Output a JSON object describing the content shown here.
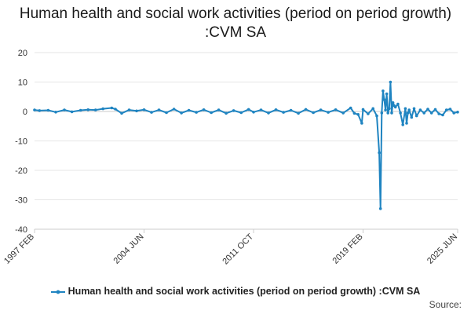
{
  "chart_data": {
    "type": "line",
    "title": "Human health and social work activities (period on period growth) :CVM SA",
    "xlabel": "",
    "ylabel": "",
    "ylim": [
      -40,
      20
    ],
    "yticks": [
      20,
      10,
      0,
      -10,
      -20,
      -30,
      -40
    ],
    "xticks": [
      "1997 FEB",
      "2004 JUN",
      "2011 OCT",
      "2019 FEB",
      "2025 JUN"
    ],
    "grid": true,
    "legend_position": "bottom",
    "x_start": "1997 FEB",
    "x_end": "2025 JUN",
    "series": [
      {
        "name": "Human health and social work activities (period on period growth) :CVM SA",
        "color": "#1f84c1",
        "x": [
          "1997 FEB",
          "1997 JUN",
          "1998 JAN",
          "1998 JUL",
          "1999 FEB",
          "1999 AUG",
          "2000 MAR",
          "2000 SEP",
          "2001 MAR",
          "2001 SEP",
          "2002 APR",
          "2002 JUL",
          "2002 DEC",
          "2003 JUN",
          "2003 DEC",
          "2004 JUN",
          "2004 DEC",
          "2005 JUN",
          "2005 DEC",
          "2006 JUN",
          "2006 DEC",
          "2007 JUN",
          "2007 DEC",
          "2008 JUN",
          "2008 DEC",
          "2009 JUN",
          "2009 DEC",
          "2010 JUN",
          "2010 DEC",
          "2011 JUN",
          "2011 OCT",
          "2012 APR",
          "2012 OCT",
          "2013 APR",
          "2013 OCT",
          "2014 APR",
          "2014 OCT",
          "2015 APR",
          "2015 OCT",
          "2016 APR",
          "2016 OCT",
          "2017 APR",
          "2017 OCT",
          "2018 APR",
          "2018 JUL",
          "2018 OCT",
          "2019 JAN",
          "2019 FEB",
          "2019 JUN",
          "2019 OCT",
          "2020 JAN",
          "2020 MAR",
          "2020 APR",
          "2020 MAY",
          "2020 JUN",
          "2020 JUL",
          "2020 AUG",
          "2020 SEP",
          "2020 OCT",
          "2020 NOV",
          "2020 DEC",
          "2021 JAN",
          "2021 FEB",
          "2021 MAR",
          "2021 APR",
          "2021 JUN",
          "2021 AUG",
          "2021 OCT",
          "2021 DEC",
          "2022 JAN",
          "2022 FEB",
          "2022 MAR",
          "2022 MAY",
          "2022 JUL",
          "2022 SEP",
          "2022 DEC",
          "2023 MAR",
          "2023 JUN",
          "2023 SEP",
          "2023 DEC",
          "2024 MAR",
          "2024 JUN",
          "2024 SEP",
          "2024 DEC",
          "2025 MAR",
          "2025 JUN"
        ],
        "values": [
          0.5,
          0.3,
          0.4,
          -0.2,
          0.5,
          -0.1,
          0.4,
          0.6,
          0.5,
          0.9,
          1.2,
          0.8,
          -0.6,
          0.5,
          0.2,
          0.6,
          -0.3,
          0.5,
          -0.4,
          0.8,
          -0.5,
          0.4,
          -0.3,
          0.6,
          -0.4,
          0.5,
          -0.6,
          0.3,
          -0.4,
          0.7,
          -0.2,
          0.5,
          -0.5,
          0.6,
          -0.3,
          0.4,
          -0.6,
          0.7,
          -0.4,
          0.5,
          -0.3,
          0.6,
          -0.5,
          1.2,
          -0.6,
          -1.0,
          -4.0,
          0.7,
          -0.8,
          1.0,
          -1.5,
          -14.0,
          -33.0,
          -0.5,
          7.0,
          4.0,
          0.5,
          6.0,
          -0.5,
          1.0,
          10.0,
          -0.5,
          3.0,
          2.0,
          1.5,
          2.5,
          -0.5,
          -4.5,
          1.0,
          -4.0,
          -0.5,
          0.5,
          -2.0,
          1.0,
          -1.5,
          0.5,
          -0.5,
          0.8,
          -0.5,
          0.7,
          -0.8,
          -1.2,
          0.5,
          0.8,
          -0.5,
          -0.2
        ]
      }
    ]
  },
  "source_label": "Source:"
}
